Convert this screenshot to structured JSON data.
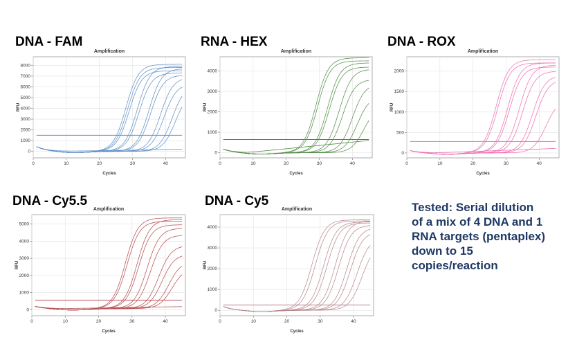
{
  "note": {
    "lines": [
      "Tested: Serial dilution",
      "of a mix of 4 DNA and 1",
      "RNA targets (pentaplex)",
      "down to 15",
      "copies/reaction"
    ]
  },
  "chart_data": [
    {
      "type": "line",
      "heading": "DNA - FAM",
      "title": "Amplification",
      "xlabel": "Cycles",
      "ylabel": "RFU",
      "xlim": [
        0,
        46
      ],
      "ylim": [
        -600,
        8800
      ],
      "xticks": [
        0,
        10,
        20,
        30,
        40
      ],
      "yticks": [
        0,
        1000,
        2000,
        3000,
        4000,
        5000,
        6000,
        7000,
        8000
      ],
      "grid": true,
      "color": "#5b8ec4",
      "threshold": 1500,
      "start_value": 450,
      "baseline": 0,
      "curves": [
        {
          "ct": 28,
          "max": 8100
        },
        {
          "ct": 28.5,
          "max": 7800
        },
        {
          "ct": 29,
          "max": 7500
        },
        {
          "ct": 31.5,
          "max": 7900
        },
        {
          "ct": 32,
          "max": 7300
        },
        {
          "ct": 35,
          "max": 7700
        },
        {
          "ct": 35.5,
          "max": 7100
        },
        {
          "ct": 38.5,
          "max": 6900
        },
        {
          "ct": 39.5,
          "max": 6300
        },
        {
          "ct": 42,
          "max": 6200
        },
        {
          "ct": 43,
          "max": 5600
        }
      ],
      "flat_curves": [
        {
          "end": 200
        }
      ]
    },
    {
      "type": "line",
      "heading": "RNA - HEX",
      "title": "Amplification",
      "xlabel": "Cycles",
      "ylabel": "RFU",
      "xlim": [
        0,
        46
      ],
      "ylim": [
        -250,
        4700
      ],
      "xticks": [
        0,
        10,
        20,
        30,
        40
      ],
      "yticks": [
        0,
        1000,
        2000,
        3000,
        4000
      ],
      "grid": true,
      "color": "#4f8a43",
      "threshold": 650,
      "start_value": 180,
      "baseline": 0,
      "curves": [
        {
          "ct": 29,
          "max": 4650
        },
        {
          "ct": 29.5,
          "max": 4500
        },
        {
          "ct": 32.5,
          "max": 4400
        },
        {
          "ct": 33,
          "max": 4200
        },
        {
          "ct": 36,
          "max": 4100
        },
        {
          "ct": 37,
          "max": 3600
        },
        {
          "ct": 40,
          "max": 3400
        },
        {
          "ct": 41.5,
          "max": 2800
        },
        {
          "ct": 43.5,
          "max": 2300
        }
      ],
      "flat_curves": [
        {
          "end": 600
        }
      ]
    },
    {
      "type": "line",
      "heading": "DNA - ROX",
      "title": "Amplification",
      "xlabel": "Cycles",
      "ylabel": "RFU",
      "xlim": [
        0,
        46
      ],
      "ylim": [
        -120,
        2350
      ],
      "xticks": [
        0,
        10,
        20,
        30,
        40
      ],
      "yticks": [
        0,
        500,
        1000,
        1500,
        2000
      ],
      "grid": true,
      "color": "#f06ab0",
      "threshold": 280,
      "start_value": 60,
      "baseline": 0,
      "curves": [
        {
          "ct": 27,
          "max": 2280
        },
        {
          "ct": 27.5,
          "max": 2200
        },
        {
          "ct": 30.5,
          "max": 2200
        },
        {
          "ct": 31,
          "max": 2100
        },
        {
          "ct": 34,
          "max": 2150
        },
        {
          "ct": 35,
          "max": 2000
        },
        {
          "ct": 38,
          "max": 1900
        },
        {
          "ct": 39,
          "max": 1800
        },
        {
          "ct": 42,
          "max": 1300
        }
      ],
      "flat_curves": [
        {
          "end": 110
        }
      ]
    },
    {
      "type": "line",
      "heading": "DNA - Cy5.5",
      "title": "Amplification",
      "xlabel": "Cycles",
      "ylabel": "RFU",
      "xlim": [
        0,
        46
      ],
      "ylim": [
        -350,
        5550
      ],
      "xticks": [
        0,
        10,
        20,
        30,
        40
      ],
      "yticks": [
        0,
        1000,
        2000,
        3000,
        4000,
        5000
      ],
      "grid": true,
      "color": "#b5474b",
      "threshold": 560,
      "start_value": 200,
      "baseline": 60,
      "curves": [
        {
          "ct": 28,
          "max": 5300
        },
        {
          "ct": 28.5,
          "max": 5100
        },
        {
          "ct": 31.5,
          "max": 5200
        },
        {
          "ct": 32,
          "max": 4900
        },
        {
          "ct": 34.5,
          "max": 4700
        },
        {
          "ct": 35.5,
          "max": 4300
        },
        {
          "ct": 38,
          "max": 3700
        },
        {
          "ct": 39,
          "max": 3200
        },
        {
          "ct": 41,
          "max": 2800
        },
        {
          "ct": 42,
          "max": 2400
        }
      ],
      "flat_curves": [
        {
          "end": 120
        }
      ]
    },
    {
      "type": "line",
      "heading": "DNA - Cy5",
      "title": "Amplification",
      "xlabel": "Cycles",
      "ylabel": "RFU",
      "xlim": [
        0,
        46
      ],
      "ylim": [
        -260,
        4600
      ],
      "xticks": [
        0,
        10,
        20,
        30,
        40
      ],
      "yticks": [
        0,
        1000,
        2000,
        3000,
        4000
      ],
      "grid": true,
      "color": "#b5858a",
      "threshold": 250,
      "start_value": 180,
      "baseline": 0,
      "curves": [
        {
          "ct": 27.5,
          "max": 4350
        },
        {
          "ct": 28.5,
          "max": 4300
        },
        {
          "ct": 31,
          "max": 4250
        },
        {
          "ct": 32,
          "max": 4200
        },
        {
          "ct": 34.5,
          "max": 4300
        },
        {
          "ct": 35.5,
          "max": 4100
        },
        {
          "ct": 38,
          "max": 4000
        },
        {
          "ct": 39,
          "max": 3800
        },
        {
          "ct": 41,
          "max": 3500
        },
        {
          "ct": 42.5,
          "max": 3200
        }
      ],
      "flat_curves": []
    }
  ]
}
